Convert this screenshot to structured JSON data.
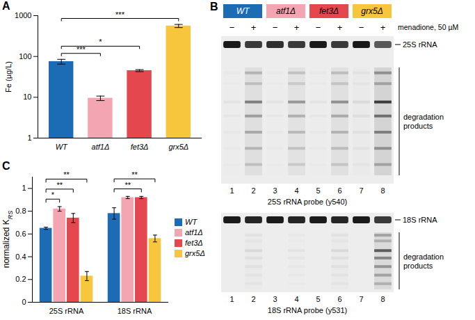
{
  "chart_data": [
    {
      "panel": "A",
      "type": "bar",
      "y_label": "Fe (µg/L)",
      "categories": [
        "WT",
        "atf1Δ",
        "fet3Δ",
        "grx5Δ"
      ],
      "values": [
        75,
        9.5,
        45,
        560
      ],
      "errors": [
        10,
        1.2,
        2.5,
        50
      ],
      "colors": [
        "#1c6bb5",
        "#f3a5b2",
        "#e5474f",
        "#f8c63d"
      ],
      "log": "y",
      "ylim": [
        1,
        1000
      ],
      "yticks": [
        1,
        10,
        100,
        1000
      ],
      "significance": [
        {
          "pair": [
            "WT",
            "atf1Δ"
          ],
          "label": "***"
        },
        {
          "pair": [
            "WT",
            "fet3Δ"
          ],
          "label": "*"
        },
        {
          "pair": [
            "WT",
            "grx5Δ"
          ],
          "label": "***"
        }
      ]
    },
    {
      "panel": "C",
      "type": "bar",
      "y_label": {
        "text": "normalized K",
        "subscript": "RS"
      },
      "categories": [
        "25S rRNA",
        "18S rRNA"
      ],
      "series": [
        {
          "name": "WT",
          "color": "#1c6bb5",
          "values": [
            0.65,
            0.78
          ],
          "errors": [
            0.01,
            0.05
          ]
        },
        {
          "name": "atf1Δ",
          "color": "#f3a5b2",
          "values": [
            0.82,
            0.92
          ],
          "errors": [
            0.02,
            0.01
          ]
        },
        {
          "name": "fet3Δ",
          "color": "#e5474f",
          "values": [
            0.74,
            0.92
          ],
          "errors": [
            0.04,
            0.01
          ]
        },
        {
          "name": "grx5Δ",
          "color": "#f8c63d",
          "values": [
            0.23,
            0.56
          ],
          "errors": [
            0.04,
            0.03
          ]
        }
      ],
      "ylim": [
        0,
        1.1
      ],
      "yticks": [
        0,
        0.2,
        0.4,
        0.6,
        0.8,
        1
      ],
      "legend": "right",
      "significance": [
        {
          "category": "25S rRNA",
          "pair": [
            "WT",
            "atf1Δ"
          ],
          "label": "*"
        },
        {
          "category": "25S rRNA",
          "pair": [
            "WT",
            "fet3Δ"
          ],
          "label": "**"
        },
        {
          "category": "25S rRNA",
          "pair": [
            "WT",
            "grx5Δ"
          ],
          "label": "**"
        },
        {
          "category": "18S rRNA",
          "pair": [
            "WT",
            "fet3Δ"
          ],
          "label": "**"
        },
        {
          "category": "18S rRNA",
          "pair": [
            "WT",
            "grx5Δ"
          ],
          "label": "**"
        }
      ]
    }
  ],
  "gel": {
    "panel": "B",
    "strains": [
      {
        "name": "WT",
        "color": "#1c6bb5"
      },
      {
        "name": "atf1Δ",
        "color": "#f3a5b2"
      },
      {
        "name": "fet3Δ",
        "color": "#e5474f"
      },
      {
        "name": "grx5Δ",
        "color": "#f8c63d"
      }
    ],
    "treatment_label": "menadione, 50 µM",
    "treatments": [
      "−",
      "+",
      "−",
      "+",
      "−",
      "+",
      "−",
      "+"
    ],
    "gels": [
      {
        "band_label": "25S rRNA",
        "products_label": "degradation products",
        "probe_label": "25S rRNA probe (y540)",
        "lane_numbers": [
          1,
          2,
          3,
          4,
          5,
          6,
          7,
          8
        ],
        "full_length": [
          1,
          0.85,
          0.9,
          0.85,
          1,
          0.85,
          1,
          0.7
        ],
        "degradation": [
          0.05,
          0.6,
          0.05,
          0.45,
          0.05,
          0.5,
          0.1,
          1
        ]
      },
      {
        "band_label": "18S rRNA",
        "products_label": "degradation products",
        "probe_label": "18S rRNA probe (y531)",
        "lane_numbers": [
          1,
          2,
          3,
          4,
          5,
          6,
          7,
          8
        ],
        "full_length": [
          1,
          0.95,
          1,
          0.95,
          1,
          0.95,
          1,
          0.85
        ],
        "degradation": [
          0,
          0.1,
          0,
          0.05,
          0,
          0.1,
          0,
          0.8
        ]
      }
    ]
  }
}
